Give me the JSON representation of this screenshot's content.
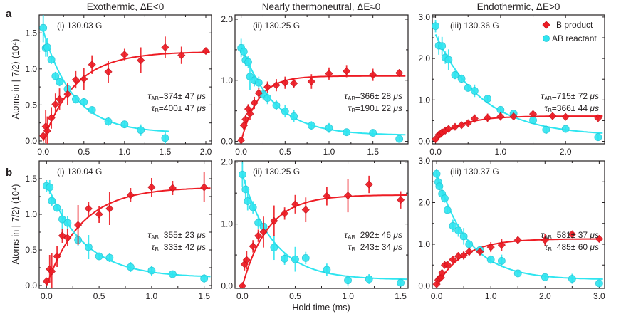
{
  "figure": {
    "row_labels": [
      "a",
      "b"
    ],
    "column_titles": [
      "Exothermic, ΔE<0",
      "Nearly thermoneutral, ΔE≈0",
      "Endothermic, ΔE>0"
    ],
    "ylabel": "Atoms in |-7/2⟩ (10⁴)",
    "xlabel": "Hold time (ms)",
    "legend": [
      {
        "label": "B product",
        "marker": "diamond",
        "color": "#ee1c24"
      },
      {
        "label": "AB reactant",
        "marker": "circle",
        "color": "#2ee5f0"
      }
    ],
    "colors": {
      "B": "#ee1c24",
      "AB": "#2ee5f0",
      "axis": "#231f20"
    }
  },
  "chart_data": [
    {
      "type": "scatter",
      "id": "a-i",
      "row": "a",
      "label": "(i) 130.03 G",
      "title": "Exothermic, ΔE<0",
      "xlabel": "",
      "ylabel": "Atoms in |-7/2⟩ (10⁴)",
      "xlim": [
        -0.05,
        2.07
      ],
      "ylim": [
        -0.04,
        1.75
      ],
      "xticks": [
        0.0,
        0.5,
        1.0,
        1.5,
        2.0
      ],
      "xtick_labels": [
        "0.0",
        "0.5",
        "1.0",
        "1.5",
        "2.0"
      ],
      "yticks": [
        0.0,
        0.5,
        1.0,
        1.5
      ],
      "ytick_labels": [
        "0.0",
        "0.5",
        "1.0",
        "1.5"
      ],
      "annot": {
        "tau_ab": "=374± 47",
        "tau_b": "=400± 47",
        "unit": "μs"
      },
      "series": [
        {
          "name": "B product",
          "x": [
            0.0,
            0.03,
            0.05,
            0.1,
            0.15,
            0.2,
            0.3,
            0.4,
            0.5,
            0.6,
            0.8,
            1.0,
            1.2,
            1.5,
            1.7,
            2.0
          ],
          "y": [
            0.07,
            0.2,
            0.14,
            0.32,
            0.51,
            0.58,
            0.65,
            0.85,
            0.86,
            1.06,
            0.96,
            1.2,
            1.12,
            1.3,
            1.19,
            1.25
          ],
          "err": [
            0.05,
            0.23,
            0.2,
            0.15,
            0.15,
            0.15,
            0.15,
            0.12,
            0.15,
            0.13,
            0.15,
            0.08,
            0.18,
            0.15,
            0.12,
            0.04
          ],
          "fit": {
            "amp": 1.24,
            "tau": 0.4,
            "x0": 0.0,
            "x1": 2.05
          }
        },
        {
          "name": "AB reactant",
          "x": [
            0.0,
            0.03,
            0.05,
            0.1,
            0.15,
            0.2,
            0.3,
            0.4,
            0.5,
            0.6,
            0.8,
            1.0,
            1.2,
            1.5
          ],
          "y": [
            1.57,
            1.29,
            1.3,
            1.13,
            0.9,
            0.82,
            0.72,
            0.58,
            0.54,
            0.43,
            0.27,
            0.23,
            0.15,
            0.04
          ],
          "err": [
            0.2,
            0.12,
            0.13,
            0.06,
            0.06,
            0.06,
            0.05,
            0.06,
            0.06,
            0.05,
            0.06,
            0.05,
            0.08,
            0.1
          ],
          "fit": {
            "amp": 1.42,
            "tau": 0.374,
            "offset": 0.11,
            "x0": -0.005,
            "x1": 1.55
          }
        }
      ]
    },
    {
      "type": "scatter",
      "id": "a-ii",
      "row": "a",
      "label": "(ii) 130.25 G",
      "title": "Nearly thermoneutral, ΔE≈0",
      "xlim": [
        -0.07,
        1.9
      ],
      "ylim": [
        -0.04,
        2.07
      ],
      "xticks": [
        0.0,
        0.5,
        1.0,
        1.5
      ],
      "xtick_labels": [
        "0.0",
        "0.5",
        "1.0",
        "1.5"
      ],
      "yticks": [
        0.0,
        1.0,
        2.0
      ],
      "ytick_labels": [
        "0.0",
        "1.0",
        "2.0"
      ],
      "annot": {
        "tau_ab": "=366± 28",
        "tau_b": "=190± 22",
        "unit": "μs"
      },
      "series": [
        {
          "name": "B product",
          "x": [
            0.0,
            0.03,
            0.05,
            0.08,
            0.1,
            0.15,
            0.2,
            0.3,
            0.4,
            0.5,
            0.6,
            0.8,
            1.0,
            1.2,
            1.5,
            1.8
          ],
          "y": [
            0.02,
            0.26,
            0.36,
            0.53,
            0.45,
            0.63,
            0.79,
            0.89,
            0.92,
            0.96,
            0.95,
            0.98,
            1.11,
            1.15,
            1.09,
            1.12
          ],
          "err": [
            0.05,
            0.07,
            0.08,
            0.08,
            0.1,
            0.1,
            0.08,
            0.09,
            0.1,
            0.1,
            0.08,
            0.12,
            0.1,
            0.1,
            0.1,
            0.06
          ],
          "fit": {
            "amp": 1.07,
            "tau": 0.19,
            "x0": 0.0,
            "x1": 1.87
          }
        },
        {
          "name": "AB reactant",
          "x": [
            0.0,
            0.03,
            0.05,
            0.08,
            0.1,
            0.15,
            0.2,
            0.25,
            0.3,
            0.4,
            0.5,
            0.6,
            0.8,
            1.0,
            1.2,
            1.5,
            1.8
          ],
          "y": [
            1.53,
            1.47,
            1.33,
            1.3,
            1.06,
            1.0,
            0.96,
            0.77,
            0.71,
            0.59,
            0.49,
            0.41,
            0.26,
            0.22,
            0.15,
            0.14,
            0.04
          ],
          "err": [
            0.15,
            0.12,
            0.1,
            0.1,
            0.22,
            0.1,
            0.1,
            0.08,
            0.1,
            0.08,
            0.1,
            0.1,
            0.07,
            0.08,
            0.05,
            0.05,
            0.03
          ],
          "fit": {
            "amp": 1.48,
            "tau": 0.366,
            "offset": 0.1,
            "x0": 0.0,
            "x1": 1.87
          }
        }
      ]
    },
    {
      "type": "scatter",
      "id": "a-iii",
      "row": "a",
      "label": "(iii) 130.36 G",
      "title": "Endothermic, ΔE>0",
      "xlim": [
        -0.05,
        2.6
      ],
      "ylim": [
        -0.06,
        3.05
      ],
      "xticks": [
        0.0,
        1.0,
        2.0
      ],
      "xtick_labels": [
        "0.0",
        "1.0",
        "2.0"
      ],
      "minor_xticks": [
        0.5,
        1.5
      ],
      "yticks": [
        0.0,
        1.0,
        2.0,
        3.0
      ],
      "ytick_labels": [
        "0.0",
        "1.0",
        "2.0",
        "3.0"
      ],
      "legend": true,
      "annot": {
        "tau_ab": "=715± 72",
        "tau_b": "=366± 44",
        "unit": "μs"
      },
      "series": [
        {
          "name": "B product",
          "x": [
            0.0,
            0.05,
            0.08,
            0.1,
            0.15,
            0.2,
            0.3,
            0.4,
            0.5,
            0.6,
            0.8,
            1.0,
            1.2,
            1.5,
            1.8,
            2.0,
            2.5
          ],
          "y": [
            0.05,
            0.16,
            0.18,
            0.22,
            0.26,
            0.3,
            0.35,
            0.39,
            0.44,
            0.55,
            0.57,
            0.6,
            0.6,
            0.66,
            0.61,
            0.59,
            0.56
          ],
          "err": [
            0.04,
            0.06,
            0.06,
            0.06,
            0.06,
            0.06,
            0.06,
            0.05,
            0.05,
            0.1,
            0.1,
            0.1,
            0.05,
            0.05,
            0.08,
            0.05,
            0.05
          ],
          "fit": {
            "amp": 0.61,
            "tau": 0.366,
            "x0": 0.0,
            "x1": 2.57
          }
        },
        {
          "name": "AB reactant",
          "x": [
            0.0,
            0.05,
            0.1,
            0.15,
            0.2,
            0.3,
            0.4,
            0.5,
            0.6,
            0.8,
            1.0,
            1.2,
            1.5,
            1.7,
            2.0,
            2.5
          ],
          "y": [
            2.78,
            2.31,
            2.3,
            2.02,
            1.97,
            1.6,
            1.51,
            1.29,
            1.22,
            1.03,
            0.76,
            0.67,
            0.51,
            0.28,
            0.3,
            0.1
          ],
          "err": [
            0.15,
            0.22,
            0.22,
            0.15,
            0.25,
            0.1,
            0.1,
            0.08,
            0.15,
            0.08,
            0.08,
            0.06,
            0.06,
            0.1,
            0.06,
            0.06
          ],
          "fit": {
            "amp": 2.45,
            "tau": 0.715,
            "offset": 0.13,
            "x0": 0.0,
            "x1": 2.57
          }
        }
      ]
    },
    {
      "type": "scatter",
      "id": "b-i",
      "row": "b",
      "label": "(i) 130.04 G",
      "xlim": [
        -0.07,
        1.57
      ],
      "ylim": [
        -0.04,
        1.75
      ],
      "xticks": [
        0.0,
        0.5,
        1.0,
        1.5
      ],
      "xtick_labels": [
        "0.0",
        "0.5",
        "1.0",
        "1.5"
      ],
      "yticks": [
        0.0,
        0.5,
        1.0,
        1.5
      ],
      "ytick_labels": [
        "0.0",
        "0.5",
        "1.0",
        "1.5"
      ],
      "annot": {
        "tau_ab": "=355± 23",
        "tau_b": "=333± 42",
        "unit": "μs"
      },
      "series": [
        {
          "name": "B product",
          "x": [
            0.0,
            0.03,
            0.05,
            0.1,
            0.15,
            0.2,
            0.3,
            0.4,
            0.5,
            0.6,
            0.8,
            1.0,
            1.2,
            1.5
          ],
          "y": [
            0.06,
            0.23,
            0.2,
            0.41,
            0.7,
            0.67,
            0.85,
            1.08,
            1.0,
            1.08,
            1.27,
            1.38,
            1.37,
            1.38
          ],
          "err": [
            0.05,
            0.2,
            0.25,
            0.15,
            0.1,
            0.12,
            0.28,
            0.1,
            0.12,
            0.23,
            0.1,
            0.13,
            0.1,
            0.21
          ],
          "fit": {
            "amp": 1.38,
            "tau": 0.333,
            "x0": 0.0,
            "x1": 1.56
          }
        },
        {
          "name": "AB reactant",
          "x": [
            0.0,
            0.03,
            0.05,
            0.1,
            0.15,
            0.2,
            0.3,
            0.4,
            0.5,
            0.6,
            0.8,
            1.0,
            1.2,
            1.5
          ],
          "y": [
            1.4,
            1.38,
            1.19,
            1.09,
            0.93,
            0.88,
            0.64,
            0.54,
            0.41,
            0.39,
            0.26,
            0.21,
            0.16,
            0.1
          ],
          "err": [
            0.08,
            0.1,
            0.08,
            0.05,
            0.15,
            0.1,
            0.08,
            0.17,
            0.05,
            0.06,
            0.07,
            0.07,
            0.04,
            0.06
          ],
          "fit": {
            "amp": 1.33,
            "tau": 0.355,
            "offset": 0.11,
            "x0": 0.0,
            "x1": 1.56
          }
        }
      ]
    },
    {
      "type": "scatter",
      "id": "b-ii",
      "row": "b",
      "label": "(ii) 130.25 G",
      "xlabel": "Hold time (ms)",
      "xlim": [
        -0.07,
        1.57
      ],
      "ylim": [
        -0.04,
        2.02
      ],
      "xticks": [
        0.0,
        0.5,
        1.0,
        1.5
      ],
      "xtick_labels": [
        "0.0",
        "0.5",
        "1.0",
        "1.5"
      ],
      "yticks": [
        0.0,
        1.0,
        2.0
      ],
      "ytick_labels": [
        "0.0",
        "1.0",
        "2.0"
      ],
      "annot": {
        "tau_ab": "=292± 46",
        "tau_b": "=243± 34",
        "unit": "μs"
      },
      "series": [
        {
          "name": "B product",
          "x": [
            0.0,
            0.02,
            0.04,
            0.1,
            0.15,
            0.2,
            0.3,
            0.4,
            0.5,
            0.6,
            0.8,
            1.0,
            1.2,
            1.5
          ],
          "y": [
            0.0,
            0.35,
            0.42,
            0.64,
            0.81,
            0.87,
            1.05,
            1.17,
            1.32,
            1.23,
            1.45,
            1.46,
            1.64,
            1.39
          ],
          "err": [
            0.02,
            0.1,
            0.15,
            0.1,
            0.1,
            0.25,
            0.25,
            0.1,
            0.15,
            0.2,
            0.15,
            0.27,
            0.14,
            0.14
          ],
          "fit": {
            "amp": 1.47,
            "tau": 0.243,
            "x0": 0.0,
            "x1": 1.56
          }
        },
        {
          "name": "AB reactant",
          "x": [
            0.0,
            0.03,
            0.05,
            0.1,
            0.15,
            0.2,
            0.3,
            0.4,
            0.5,
            0.6,
            0.8,
            1.0,
            1.2,
            1.5
          ],
          "y": [
            1.8,
            1.56,
            1.37,
            1.27,
            1.02,
            0.96,
            0.62,
            0.44,
            0.43,
            0.45,
            0.26,
            0.09,
            0.11,
            0.05
          ],
          "err": [
            0.2,
            0.15,
            0.15,
            0.1,
            0.1,
            0.1,
            0.2,
            0.1,
            0.2,
            0.1,
            0.1,
            0.08,
            0.08,
            0.06
          ],
          "fit": {
            "amp": 1.7,
            "tau": 0.292,
            "offset": 0.1,
            "x0": 0.0,
            "x1": 1.56
          }
        }
      ]
    },
    {
      "type": "scatter",
      "id": "b-iii",
      "row": "b",
      "label": "(iii) 130.37 G",
      "xlim": [
        -0.08,
        3.1
      ],
      "ylim": [
        -0.06,
        3.0
      ],
      "xticks": [
        0.0,
        1.0,
        2.0,
        3.0
      ],
      "xtick_labels": [
        "0.0",
        "1.0",
        "2.0",
        "3.0"
      ],
      "minor_xticks": [
        0.5,
        1.5,
        2.5
      ],
      "yticks": [
        0.0,
        1.0,
        2.0,
        3.0
      ],
      "ytick_labels": [
        "0.0",
        "1.0",
        "2.0",
        "3.0"
      ],
      "annot": {
        "tau_ab": "=581± 37",
        "tau_b": "=485± 60",
        "unit": "μs"
      },
      "series": [
        {
          "name": "B product",
          "x": [
            0.0,
            0.03,
            0.05,
            0.08,
            0.1,
            0.15,
            0.2,
            0.3,
            0.4,
            0.5,
            0.6,
            0.8,
            1.0,
            1.2,
            1.5,
            2.0,
            2.5,
            3.0
          ],
          "y": [
            0.04,
            0.14,
            0.18,
            0.2,
            0.31,
            0.5,
            0.51,
            0.63,
            0.71,
            0.73,
            0.82,
            0.82,
            0.93,
            0.98,
            1.1,
            1.1,
            1.24,
            1.13
          ],
          "err": [
            0.05,
            0.05,
            0.05,
            0.05,
            0.06,
            0.06,
            0.06,
            0.06,
            0.1,
            0.1,
            0.1,
            0.06,
            0.12,
            0.15,
            0.1,
            0.15,
            0.05,
            0.08
          ],
          "fit": {
            "amp": 1.13,
            "tau": 0.485,
            "x0": 0.0,
            "x1": 3.07
          }
        },
        {
          "name": "AB reactant",
          "x": [
            0.0,
            0.03,
            0.05,
            0.1,
            0.15,
            0.2,
            0.3,
            0.4,
            0.5,
            0.6,
            0.8,
            1.0,
            1.2,
            1.5,
            2.0,
            2.5,
            3.0
          ],
          "y": [
            2.69,
            2.49,
            2.39,
            2.21,
            2.1,
            1.82,
            1.44,
            1.33,
            1.19,
            1.0,
            0.86,
            0.63,
            0.6,
            0.3,
            0.21,
            0.17,
            0.06
          ],
          "err": [
            0.12,
            0.1,
            0.1,
            0.08,
            0.1,
            0.1,
            0.15,
            0.15,
            0.2,
            0.1,
            0.1,
            0.1,
            0.15,
            0.05,
            0.06,
            0.12,
            0.05
          ],
          "fit": {
            "amp": 2.55,
            "tau": 0.581,
            "offset": 0.15,
            "x0": 0.0,
            "x1": 3.07
          }
        }
      ]
    }
  ]
}
